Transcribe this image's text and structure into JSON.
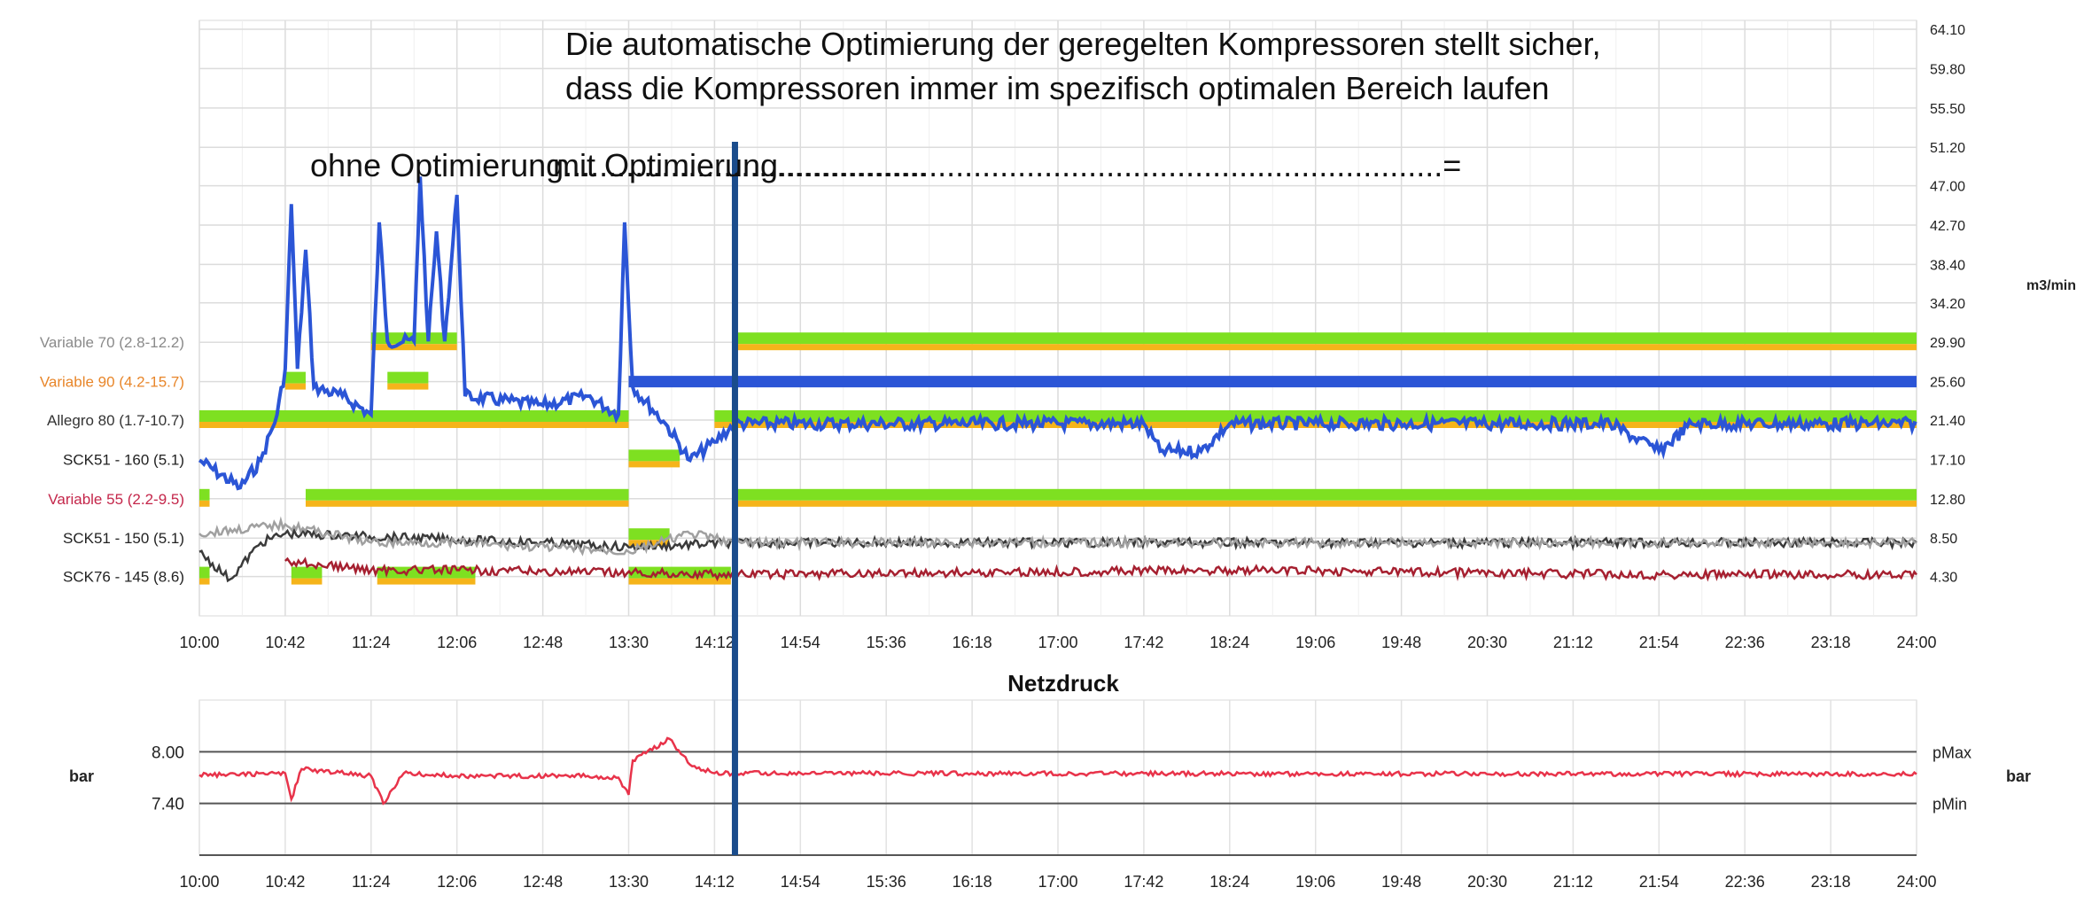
{
  "annotation": {
    "line1": "Die automatische Optimierung der geregelten Kompressoren stellt sicher,",
    "line2": "dass die Kompressoren immer im spezifisch optimalen Bereich laufen",
    "phase_without": "ohne Optimierung.........................................",
    "phase_with": "mit Optimierung...........................................................................="
  },
  "chart_data": [
    {
      "type": "line",
      "title": "",
      "xlabel": "",
      "ylabel": "m3/min",
      "x_ticks": [
        "10:00",
        "10:42",
        "11:24",
        "12:06",
        "12:48",
        "13:30",
        "14:12",
        "14:54",
        "15:36",
        "16:18",
        "17:00",
        "17:42",
        "18:24",
        "19:06",
        "19:48",
        "20:30",
        "21:12",
        "21:54",
        "22:36",
        "23:18",
        "24:00"
      ],
      "y_ticks": [
        "64.10",
        "59.80",
        "55.50",
        "51.20",
        "47.00",
        "42.70",
        "38.40",
        "34.20",
        "29.90",
        "25.60",
        "21.40",
        "17.10",
        "12.80",
        "8.50",
        "4.30"
      ],
      "y_unit": "m3/min",
      "ylim": [
        0,
        64.1
      ],
      "grid": true,
      "optimization_start": "14:22",
      "compressor_rows": [
        {
          "label": "Variable 70 (2.8-12.2)",
          "color": "#8a8a8a",
          "level": 29.9,
          "segments": [
            [
              "14:22",
              "24:00"
            ],
            [
              "11:24",
              "12:06"
            ]
          ]
        },
        {
          "label": "Variable 90 (4.2-15.7)",
          "color": "#e8862a",
          "level": 25.6,
          "segments": [
            [
              "10:42",
              "10:52"
            ],
            [
              "11:32",
              "11:52"
            ]
          ]
        },
        {
          "label": "Allegro 80 (1.7-10.7)",
          "color": "#333333",
          "level": 21.4,
          "segments": [
            [
              "10:00",
              "13:30"
            ],
            [
              "14:12",
              "24:00"
            ]
          ]
        },
        {
          "label": "SCK51 - 160 (5.1)",
          "color": "#222222",
          "level": 17.1,
          "segments": [
            [
              "13:30",
              "13:55"
            ]
          ]
        },
        {
          "label": "Variable 55 (2.2-9.5)",
          "color": "#c4264a",
          "level": 12.8,
          "segments": [
            [
              "10:00",
              "10:05"
            ],
            [
              "10:52",
              "13:30"
            ],
            [
              "14:22",
              "24:00"
            ]
          ]
        },
        {
          "label": "SCK51 - 150 (5.1)",
          "color": "#222222",
          "level": 8.5,
          "segments": [
            [
              "13:30",
              "13:50"
            ]
          ]
        },
        {
          "label": "SCK76 - 145 (8.6)",
          "color": "#222222",
          "level": 4.3,
          "segments": [
            [
              "10:00",
              "10:05"
            ],
            [
              "10:45",
              "11:00"
            ],
            [
              "11:27",
              "12:15"
            ],
            [
              "13:30",
              "14:20"
            ]
          ]
        }
      ],
      "series": [
        {
          "color": "#2b55d6",
          "description_points": [
            [
              "10:00",
              17
            ],
            [
              "10:20",
              14
            ],
            [
              "10:30",
              17
            ],
            [
              "10:38",
              22
            ],
            [
              "10:42",
              27
            ],
            [
              "10:45",
              45
            ],
            [
              "10:48",
              27
            ],
            [
              "10:52",
              40
            ],
            [
              "10:56",
              25
            ],
            [
              "11:10",
              24
            ],
            [
              "11:24",
              22
            ],
            [
              "11:28",
              43
            ],
            [
              "11:32",
              30
            ],
            [
              "11:45",
              30
            ],
            [
              "11:48",
              48
            ],
            [
              "11:52",
              30
            ],
            [
              "11:56",
              42
            ],
            [
              "12:00",
              30
            ],
            [
              "12:06",
              46
            ],
            [
              "12:10",
              24
            ],
            [
              "12:48",
              23
            ],
            [
              "13:10",
              24
            ],
            [
              "13:25",
              22
            ],
            [
              "13:28",
              43
            ],
            [
              "13:32",
              25
            ],
            [
              "13:48",
              21
            ],
            [
              "14:00",
              17
            ],
            [
              "14:12",
              19
            ],
            [
              "14:22",
              21
            ],
            [
              "17:42",
              21
            ],
            [
              "17:50",
              18
            ],
            [
              "18:10",
              18
            ],
            [
              "18:24",
              21
            ],
            [
              "21:30",
              21
            ],
            [
              "21:54",
              18
            ],
            [
              "22:10",
              21
            ],
            [
              "24:00",
              21
            ]
          ]
        },
        {
          "color": "#2b55d6",
          "description_points": [
            [
              "13:30",
              25.6
            ],
            [
              "24:00",
              25.6
            ]
          ],
          "style": "thick"
        },
        {
          "color": "#3a3a3a",
          "description_points": [
            [
              "10:00",
              7
            ],
            [
              "10:15",
              4
            ],
            [
              "10:30",
              8
            ],
            [
              "10:42",
              9
            ],
            [
              "12:48",
              8
            ],
            [
              "13:30",
              7.5
            ],
            [
              "14:22",
              8
            ],
            [
              "24:00",
              8
            ]
          ]
        },
        {
          "color": "#a0a0a0",
          "description_points": [
            [
              "10:00",
              9
            ],
            [
              "10:42",
              10
            ],
            [
              "11:24",
              8
            ],
            [
              "12:06",
              8
            ],
            [
              "13:30",
              7
            ],
            [
              "14:00",
              9
            ],
            [
              "14:22",
              8
            ],
            [
              "24:00",
              8
            ]
          ]
        },
        {
          "color": "#a62030",
          "description_points": [
            [
              "10:42",
              6
            ],
            [
              "11:24",
              5
            ],
            [
              "12:06",
              5
            ],
            [
              "14:22",
              4.5
            ],
            [
              "18:24",
              5
            ],
            [
              "21:54",
              4.5
            ],
            [
              "24:00",
              4.5
            ]
          ]
        }
      ]
    },
    {
      "type": "line",
      "title": "Netzdruck",
      "ylabel": "bar",
      "y_ticks": [
        "8.00",
        "7.40"
      ],
      "ref_lines": [
        "pMax",
        "pMin"
      ],
      "x_ticks": [
        "10:00",
        "10:42",
        "11:24",
        "12:06",
        "12:48",
        "13:30",
        "14:12",
        "14:54",
        "15:36",
        "16:18",
        "17:00",
        "17:42",
        "18:24",
        "19:06",
        "19:48",
        "20:30",
        "21:12",
        "21:54",
        "22:36",
        "23:18",
        "24:00"
      ],
      "ylim": [
        6.8,
        8.6
      ],
      "series": [
        {
          "color": "#e8334a",
          "description_points": [
            [
              "10:00",
              7.73
            ],
            [
              "10:42",
              7.75
            ],
            [
              "10:45",
              7.45
            ],
            [
              "10:50",
              7.8
            ],
            [
              "11:24",
              7.72
            ],
            [
              "11:30",
              7.4
            ],
            [
              "11:40",
              7.75
            ],
            [
              "12:06",
              7.72
            ],
            [
              "13:10",
              7.72
            ],
            [
              "13:25",
              7.7
            ],
            [
              "13:30",
              7.5
            ],
            [
              "13:32",
              7.9
            ],
            [
              "13:50",
              8.15
            ],
            [
              "14:00",
              7.85
            ],
            [
              "14:12",
              7.75
            ],
            [
              "24:00",
              7.74
            ]
          ]
        }
      ]
    }
  ],
  "labels": {
    "pMax": "pMax",
    "pMin": "pMin",
    "bar_left": "bar",
    "bar_right": "bar",
    "m3min": "m3/min",
    "netzdruck": "Netzdruck"
  }
}
